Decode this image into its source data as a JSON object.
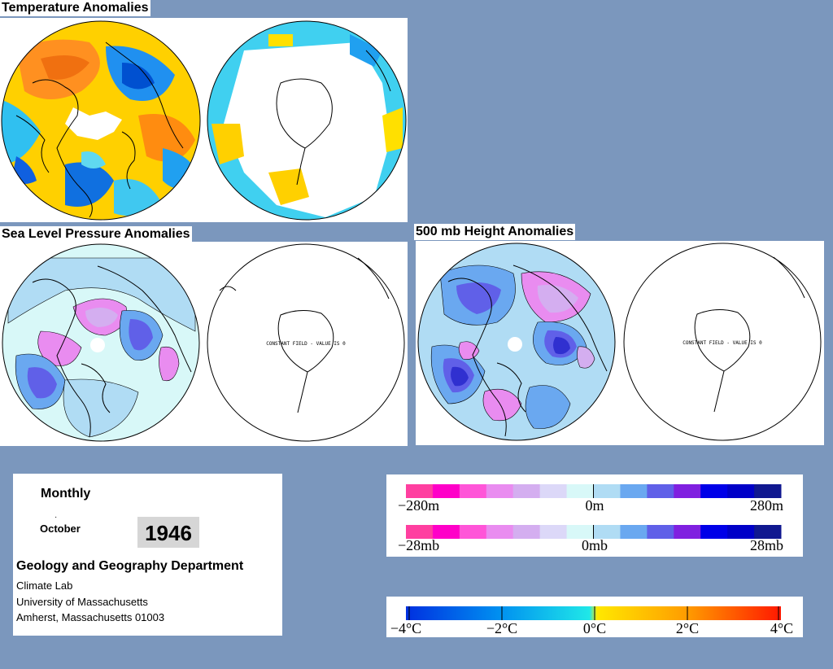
{
  "sections": {
    "temperature": {
      "title": "Temperature Anomalies"
    },
    "slp": {
      "title": "Sea Level Pressure Anomalies",
      "south_note": "CONSTANT FIELD - VALUE IS 0"
    },
    "height500": {
      "title": "500 mb Height Anomalies",
      "south_note": "CONSTANT FIELD - VALUE IS 0"
    }
  },
  "info": {
    "period": "Monthly",
    "dot": "·",
    "month": "October",
    "year": "1946",
    "department": "Geology and Geography Department",
    "lab": "Climate Lab",
    "university": "University of Massachusetts",
    "address": "Amherst, Massachusetts 01003"
  },
  "legends": {
    "height": {
      "left": "−280m",
      "mid": "0m",
      "right": "280m"
    },
    "pressure": {
      "left": "−28mb",
      "mid": "0mb",
      "right": "28mb"
    },
    "temperature": {
      "labels": [
        "−4°C",
        "−2°C",
        "0°C",
        "2°C",
        "4°C"
      ]
    }
  },
  "colors": {
    "background": "#7b97bd",
    "pressure_scale": [
      "#ff3fa0",
      "#ff00c8",
      "#ff55d8",
      "#e98cf0",
      "#d4aef0",
      "#dcd8f8",
      "#d8f8f8",
      "#b0dcf4",
      "#6aa8f0",
      "#6060e8",
      "#8020e0",
      "#0000e8",
      "#0000c8",
      "#101890"
    ],
    "temperature_scale": [
      "#0030e0",
      "#0080f0",
      "#00c8f0",
      "#20e0e8",
      "#ffe000",
      "#ffb000",
      "#ff7000",
      "#ff2000"
    ]
  }
}
